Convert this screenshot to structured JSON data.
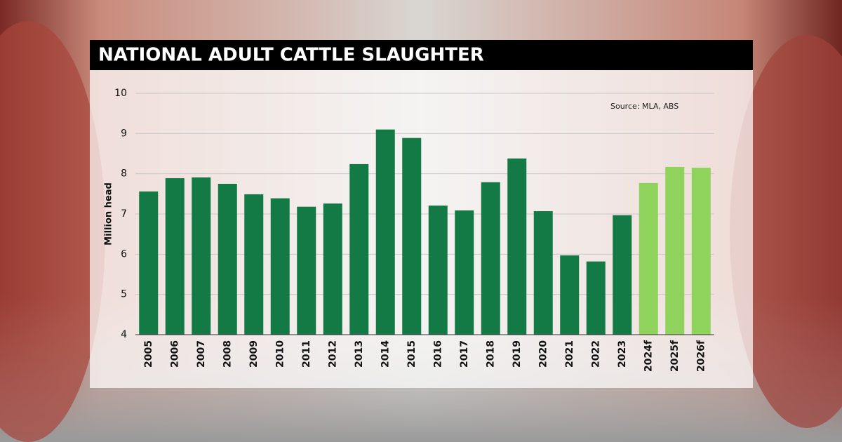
{
  "chart_data": {
    "type": "bar",
    "title": "NATIONAL ADULT CATTLE SLAUGHTER",
    "source": "Source: MLA, ABS",
    "y_label": "Million head",
    "categories": [
      "2005",
      "2006",
      "2007",
      "2008",
      "2009",
      "2010",
      "2011",
      "2012",
      "2013",
      "2014",
      "2015",
      "2016",
      "2017",
      "2018",
      "2019",
      "2020",
      "2021",
      "2022",
      "2023",
      "2024f",
      "2025f",
      "2026f"
    ],
    "values": [
      7.56,
      7.89,
      7.91,
      7.75,
      7.49,
      7.39,
      7.18,
      7.26,
      8.24,
      9.1,
      8.89,
      7.21,
      7.09,
      7.79,
      8.38,
      7.07,
      5.97,
      5.82,
      6.97,
      7.77,
      8.17,
      8.15
    ],
    "colors": [
      "#137a45",
      "#137a45",
      "#137a45",
      "#137a45",
      "#137a45",
      "#137a45",
      "#137a45",
      "#137a45",
      "#137a45",
      "#137a45",
      "#137a45",
      "#137a45",
      "#137a45",
      "#137a45",
      "#137a45",
      "#137a45",
      "#137a45",
      "#137a45",
      "#137a45",
      "#8fd35c",
      "#8fd35c",
      "#8fd35c"
    ],
    "ylim": [
      4,
      10
    ],
    "yticks": [
      4,
      5,
      6,
      7,
      8,
      9,
      10
    ],
    "grid": true
  }
}
